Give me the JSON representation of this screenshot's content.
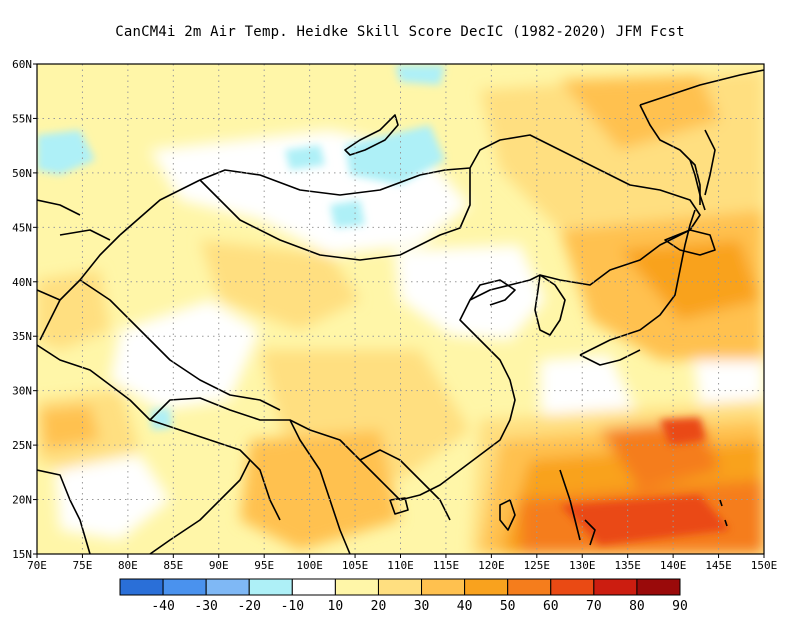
{
  "title": "CanCM4i  2m Air Temp. Heidke Skill Score DecIC (1982-2020) JFM Fcst",
  "map": {
    "lon_range": [
      70,
      150
    ],
    "lat_range": [
      15,
      60
    ],
    "lat_labels": [
      "60N",
      "55N",
      "50N",
      "45N",
      "40N",
      "35N",
      "30N",
      "25N",
      "20N",
      "15N"
    ],
    "lon_labels": [
      "70E",
      "75E",
      "80E",
      "85E",
      "90E",
      "95E",
      "100E",
      "105E",
      "110E",
      "115E",
      "120E",
      "125E",
      "130E",
      "135E",
      "140E",
      "145E",
      "150E"
    ],
    "grid": "dotted"
  },
  "colorbar": {
    "colors": [
      "#2a6fd8",
      "#4a92ee",
      "#7fb8f5",
      "#aef0f7",
      "#ffffff",
      "#fff6a8",
      "#ffdf80",
      "#ffc14f",
      "#f9a21e",
      "#f57d1c",
      "#ea4a14",
      "#cc1d10",
      "#9a0a0a"
    ],
    "labels": [
      "-40",
      "-30",
      "-20",
      "-10",
      "10",
      "20",
      "30",
      "40",
      "50",
      "60",
      "70",
      "80",
      "90"
    ]
  }
}
